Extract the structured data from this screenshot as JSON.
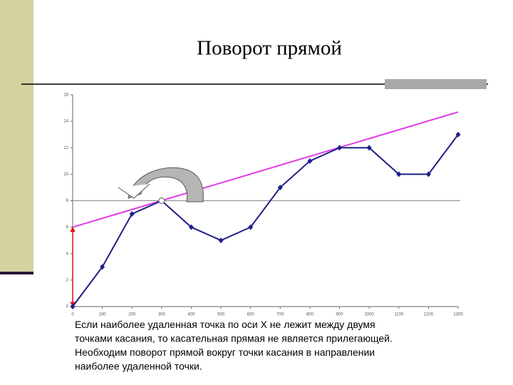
{
  "chart_data": {
    "type": "line",
    "title": "Поворот прямой",
    "annotations": [
      "Если наиболее удаленная точка по оси X не лежит между двумя",
      "точками касания, то касательная прямая не является прилегающей.",
      "Необходим поворот прямой вокруг точки касания в направлении",
      "наиболее удаленной точки."
    ],
    "x": [
      0,
      100,
      200,
      300,
      400,
      500,
      600,
      700,
      800,
      900,
      1000,
      1100,
      1200,
      1300
    ],
    "series": [
      {
        "color": "#1f1f86",
        "values": [
          0,
          3,
          7,
          8,
          6,
          5,
          6,
          9,
          11,
          12,
          12,
          10,
          10,
          13
        ]
      }
    ],
    "highlight_index": 3,
    "tangent": {
      "color": "#e23ce6",
      "x": [
        0,
        1300
      ],
      "y": [
        6,
        14.7
      ]
    },
    "hline": {
      "value": 8,
      "color": "#888888"
    },
    "intercept_arrow_color": "#e01010",
    "xlim": [
      0,
      1300
    ],
    "ylim": [
      0,
      16
    ],
    "xticks": [
      0,
      100,
      200,
      300,
      400,
      500,
      600,
      700,
      800,
      900,
      1000,
      1100,
      1200,
      1300
    ],
    "yticks": [
      0,
      2,
      4,
      6,
      8,
      10,
      12,
      14,
      16
    ]
  }
}
